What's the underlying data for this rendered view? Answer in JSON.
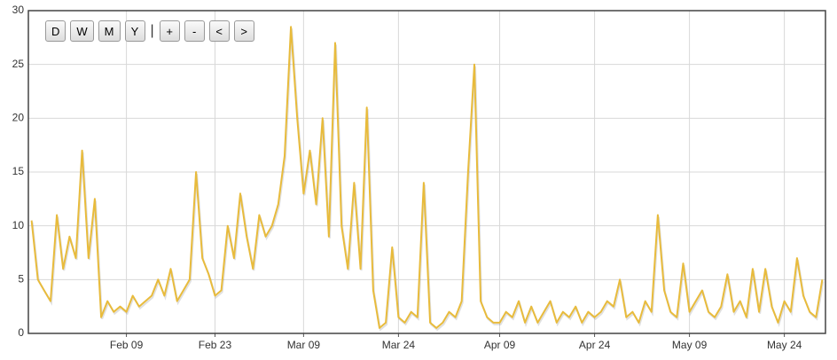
{
  "controls": [
    "D",
    "W",
    "M",
    "Y",
    "+",
    "-",
    "<",
    ">"
  ],
  "separator": "|",
  "chart_data": {
    "type": "line",
    "color": "#e8bb3c",
    "grid": true,
    "ylim": [
      0,
      30
    ],
    "yticks": [
      0,
      5,
      10,
      15,
      20,
      25,
      30
    ],
    "categories": [
      null,
      null,
      null,
      null,
      null,
      null,
      null,
      null,
      null,
      null,
      null,
      null,
      null,
      null,
      null,
      "Feb 09",
      null,
      null,
      null,
      null,
      null,
      null,
      null,
      null,
      null,
      null,
      null,
      null,
      null,
      "Feb 23",
      null,
      null,
      null,
      null,
      null,
      null,
      null,
      null,
      null,
      null,
      null,
      null,
      null,
      "Mar 09",
      null,
      null,
      null,
      null,
      null,
      null,
      null,
      null,
      null,
      null,
      null,
      null,
      null,
      null,
      "Mar 24",
      null,
      null,
      null,
      null,
      null,
      null,
      null,
      null,
      null,
      null,
      null,
      null,
      null,
      null,
      null,
      "Apr 09",
      null,
      null,
      null,
      null,
      null,
      null,
      null,
      null,
      null,
      null,
      null,
      null,
      null,
      null,
      "Apr 24",
      null,
      null,
      null,
      null,
      null,
      null,
      null,
      null,
      null,
      null,
      null,
      null,
      null,
      null,
      "May 09",
      null,
      null,
      null,
      null,
      null,
      null,
      null,
      null,
      null,
      null,
      null,
      null,
      null,
      null,
      "May 24",
      null,
      null,
      null,
      null,
      null,
      null
    ],
    "values": [
      10.5,
      5,
      4,
      3,
      11,
      6,
      9,
      7,
      17,
      7,
      12.5,
      1.5,
      3,
      2,
      2.5,
      2,
      3.5,
      2.5,
      3,
      3.5,
      5,
      3.5,
      6,
      3,
      4,
      5,
      15,
      7,
      5.5,
      3.5,
      4,
      10,
      7,
      13,
      9,
      6,
      11,
      9,
      10,
      12,
      16.5,
      28.5,
      20,
      13,
      17,
      12,
      20,
      9,
      27,
      10,
      6,
      14,
      6,
      21,
      4,
      0.5,
      1,
      8,
      1.5,
      1,
      2,
      1.5,
      14,
      1,
      0.5,
      1,
      2,
      1.5,
      3,
      15,
      25,
      3,
      1.5,
      1,
      1,
      2,
      1.5,
      3,
      1,
      2.5,
      1,
      2,
      3,
      1,
      2,
      1.5,
      2.5,
      1,
      2,
      1.5,
      2,
      3,
      2.5,
      5,
      1.5,
      2,
      1,
      3,
      2,
      11,
      4,
      2,
      1.5,
      6.5,
      2,
      3,
      4,
      2,
      1.5,
      2.5,
      5.5,
      2,
      3,
      1.5,
      6,
      2,
      6,
      2.5,
      1,
      3,
      2,
      7,
      3.5,
      2,
      1.5,
      5
    ]
  }
}
